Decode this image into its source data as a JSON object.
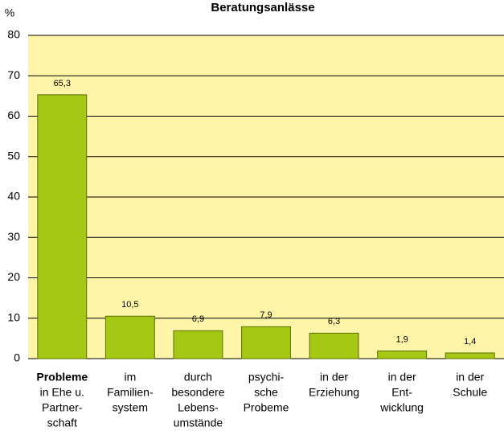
{
  "chart_data": {
    "type": "bar",
    "title": "Beratungsanlässe",
    "y_label": "%",
    "categories": [
      [
        "Probleme",
        "in Ehe u.",
        "Partner-",
        "schaft"
      ],
      [
        "im",
        "Familien-",
        "system"
      ],
      [
        "durch",
        "besondere",
        "Lebens-",
        "umstände"
      ],
      [
        "psychi-",
        "sche",
        "Probeme"
      ],
      [
        "in der",
        "Erziehung"
      ],
      [
        "in der",
        "Ent-",
        "wicklung"
      ],
      [
        "in der",
        "Schule"
      ]
    ],
    "values": [
      65.3,
      10.5,
      6.9,
      7.9,
      6.3,
      1.9,
      1.4
    ],
    "value_labels": [
      "65,3",
      "10,5",
      "6,9",
      "7,9",
      "6,3",
      "1,9",
      "1,4"
    ],
    "color": "#a5c814",
    "background": "#fff5a8",
    "ylim": [
      0,
      80
    ],
    "yticks": [
      0,
      10,
      20,
      30,
      40,
      50,
      60,
      70,
      80
    ],
    "grid": true
  }
}
